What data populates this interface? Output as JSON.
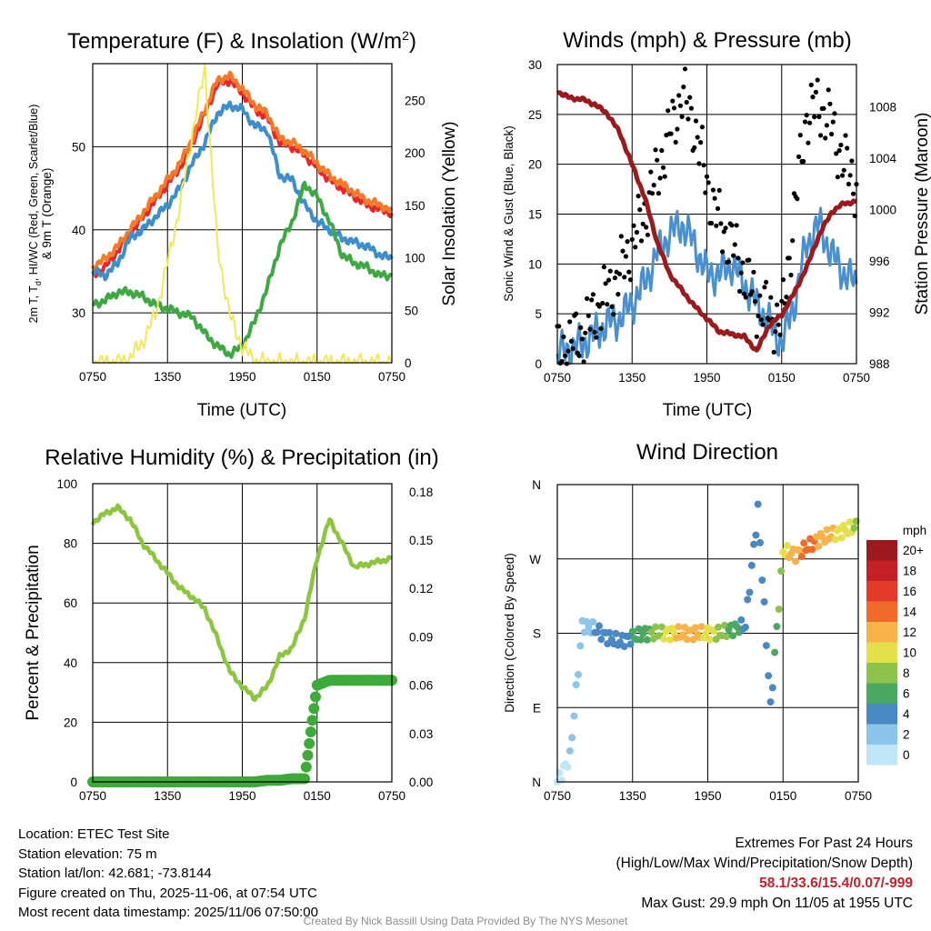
{
  "chart_data": [
    {
      "type": "line",
      "title": "Temperature (F) & Insolation (W/m",
      "title_sup": "2",
      "title_end": ")",
      "xlabel": "Time (UTC)",
      "ylabel_line1": "2m T, T",
      "ylabel_sub": "d",
      "ylabel_line1_end": ", HI/WC (Red, Green, Scarlet/Blue)",
      "ylabel_line2": "& 9m T (Orange)",
      "y2label": "Solar Insolation (Yellow)",
      "xticks": [
        "0750",
        "1350",
        "1950",
        "0150",
        "0750"
      ],
      "x": [
        0,
        1,
        2,
        3,
        4,
        5,
        6,
        7,
        8,
        9,
        10,
        11,
        12,
        13,
        14,
        15,
        16,
        17,
        18,
        19,
        20,
        21,
        22,
        23,
        24
      ],
      "ylim": [
        24,
        60
      ],
      "yticks": [
        30,
        40,
        50
      ],
      "y2lim": [
        0,
        285
      ],
      "y2ticks": [
        0,
        50,
        100,
        150,
        200,
        250
      ],
      "series": [
        {
          "name": "2m T",
          "color": "#e8262a",
          "values": [
            34.5,
            35.5,
            37.5,
            39.5,
            41.5,
            43.5,
            45.5,
            47.5,
            50.5,
            54,
            57.5,
            58,
            56.5,
            54.5,
            53.5,
            50.5,
            50,
            49,
            47.5,
            46,
            45,
            44,
            43,
            42.5,
            42
          ]
        },
        {
          "name": "9m T",
          "color": "#f47a2a",
          "values": [
            35.5,
            36.5,
            38,
            40,
            42,
            44,
            46,
            48,
            51,
            54.5,
            58,
            58.5,
            57,
            55,
            54,
            51,
            50.5,
            49.5,
            48,
            46.5,
            45.5,
            44.5,
            43.5,
            43,
            42.3
          ]
        },
        {
          "name": "HI/WC",
          "color": "#3c8fcc",
          "values": [
            35,
            34.5,
            36,
            39,
            40,
            41.5,
            43,
            45,
            48,
            50.5,
            54,
            55,
            54.5,
            52.5,
            52,
            46.5,
            46,
            43,
            41,
            40,
            39,
            38.5,
            38,
            37,
            36.5
          ]
        },
        {
          "name": "Td",
          "color": "#3ea843",
          "values": [
            31,
            31.5,
            32.5,
            32.5,
            32,
            31,
            30.5,
            30,
            29.5,
            27.5,
            26,
            25,
            26,
            29,
            33,
            38,
            41,
            45.5,
            44,
            41,
            37,
            36,
            35.5,
            34.5,
            34.5
          ]
        },
        {
          "name": "Solar Insolation",
          "color": "#f2e85c",
          "axis": "y2",
          "values": [
            0,
            0,
            0,
            5,
            20,
            45,
            95,
            150,
            220,
            280,
            110,
            45,
            15,
            2,
            0,
            0,
            0,
            0,
            0,
            0,
            0,
            0,
            0,
            0,
            0
          ]
        }
      ]
    },
    {
      "type": "line",
      "title": "Winds (mph) & Pressure (mb)",
      "xlabel": "Time (UTC)",
      "ylabel": "Sonic Wind & Gust (Blue, Black)",
      "y2label": "Station Pressure (Maroon)",
      "xticks": [
        "0750",
        "1350",
        "1950",
        "0150",
        "0750"
      ],
      "x": [
        0,
        1,
        2,
        3,
        4,
        5,
        6,
        7,
        8,
        9,
        10,
        11,
        12,
        13,
        14,
        15,
        16,
        17,
        18,
        19,
        20,
        21,
        22,
        23,
        24
      ],
      "ylim": [
        0,
        30
      ],
      "yticks": [
        0,
        5,
        10,
        15,
        20,
        25,
        30
      ],
      "y2lim": [
        988,
        1011.3
      ],
      "y2ticks": [
        988,
        992,
        996,
        1000,
        1004,
        1008
      ],
      "series": [
        {
          "name": "Sonic Wind",
          "color": "#4a90cf",
          "values": [
            1,
            1.5,
            2,
            3,
            4,
            4.5,
            6,
            8,
            11,
            13,
            14,
            12,
            9,
            9,
            10,
            8,
            6,
            4,
            2,
            6,
            12,
            14,
            11,
            9,
            8
          ]
        },
        {
          "name": "Gust",
          "color": "#000000",
          "style": "points",
          "values": [
            1,
            2,
            3,
            5,
            7,
            9,
            12,
            15,
            19,
            23,
            27,
            24,
            18,
            14,
            12,
            9,
            6,
            5,
            4,
            15,
            25,
            26,
            24,
            20,
            18
          ]
        },
        {
          "name": "Station Pressure",
          "color": "#9b1a1e",
          "axis": "y2",
          "values": [
            1009.2,
            1008.7,
            1008.6,
            1008.2,
            1007.5,
            1006,
            1003.5,
            1001,
            997.5,
            995,
            993.7,
            992.5,
            991.5,
            990.5,
            990.3,
            990.1,
            989,
            991,
            991.8,
            993.5,
            995.5,
            998,
            999.8,
            1000.5,
            1000.6
          ]
        }
      ]
    },
    {
      "type": "line",
      "title": "Relative Humidity (%) & Precipitation (in)",
      "xlabel": "",
      "ylabel": "Percent & Precipitation",
      "xticks": [
        "0750",
        "1350",
        "1950",
        "0150",
        "0750"
      ],
      "x": [
        0,
        1,
        2,
        3,
        4,
        5,
        6,
        7,
        8,
        9,
        10,
        11,
        12,
        13,
        14,
        15,
        16,
        17,
        18,
        19,
        20,
        21,
        22,
        23,
        24
      ],
      "ylim": [
        0,
        100
      ],
      "yticks": [
        0,
        20,
        40,
        60,
        80,
        100
      ],
      "y2lim": [
        0,
        0.185
      ],
      "y2ticks": [
        "0.00",
        "0.03",
        "0.06",
        "0.09",
        "0.12",
        "0.15",
        "0.18"
      ],
      "series": [
        {
          "name": "Relative Humidity",
          "color": "#8cc63f",
          "values": [
            87,
            90,
            92,
            88,
            80,
            75,
            70,
            65,
            62,
            58,
            48,
            37,
            32,
            28,
            32,
            42,
            45,
            55,
            75,
            88,
            80,
            72,
            73,
            74,
            75
          ]
        },
        {
          "name": "Precipitation",
          "color": "#3daa3a",
          "axis": "y2",
          "values": [
            0,
            0,
            0,
            0,
            0,
            0,
            0,
            0,
            0,
            0,
            0,
            0,
            0,
            0,
            0.001,
            0.001,
            0.002,
            0.002,
            0.06,
            0.063,
            0.063,
            0.063,
            0.063,
            0.063,
            0.063
          ]
        }
      ]
    },
    {
      "type": "scatter",
      "title": "Wind Direction",
      "ylabel": "Direction (Colored By Speed)",
      "xticks": [
        "0750",
        "1350",
        "1950",
        "0150",
        "0750"
      ],
      "ylim": [
        0,
        360
      ],
      "yticks": [
        "N",
        "E",
        "S",
        "W",
        "N"
      ],
      "legend_title": "mph",
      "legend": [
        {
          "label": "0",
          "color": "#bfe6f7"
        },
        {
          "label": "2",
          "color": "#8cc4ea"
        },
        {
          "label": "4",
          "color": "#4a88c4"
        },
        {
          "label": "6",
          "color": "#4aa860"
        },
        {
          "label": "8",
          "color": "#8cc34a"
        },
        {
          "label": "10",
          "color": "#e4e04a"
        },
        {
          "label": "12",
          "color": "#f7b24a"
        },
        {
          "label": "14",
          "color": "#f06a2a"
        },
        {
          "label": "16",
          "color": "#e33b2a"
        },
        {
          "label": "18",
          "color": "#c42027"
        },
        {
          "label": "20+",
          "color": "#9a1a1e"
        }
      ],
      "x": [
        0,
        1,
        2,
        3,
        4,
        5,
        6,
        7,
        8,
        9,
        10,
        11,
        12,
        13,
        14,
        15,
        16,
        17,
        18,
        19,
        20,
        21,
        22,
        23,
        24
      ],
      "direction": [
        0,
        30,
        190,
        185,
        175,
        170,
        175,
        180,
        180,
        180,
        180,
        180,
        180,
        180,
        185,
        190,
        330,
        90,
        280,
        275,
        285,
        295,
        300,
        305,
        310
      ],
      "speed": [
        0,
        1,
        2,
        3,
        4,
        4,
        5,
        6,
        8,
        10,
        12,
        12,
        10,
        8,
        6,
        4,
        3,
        3,
        10,
        12,
        14,
        12,
        11,
        10,
        8
      ]
    }
  ],
  "footer": {
    "location": "Location: ETEC Test Site",
    "elevation": "Station elevation: 75 m",
    "latlon": "Station lat/lon: 42.681; -73.8144",
    "created": "Figure created on Thu, 2025-11-06, at 07:54 UTC",
    "recent": "Most recent data timestamp: 2025/11/06 07:50:00"
  },
  "extremes": {
    "title": "Extremes For Past 24 Hours",
    "subtitle": "(High/Low/Max Wind/Precipitation/Snow Depth)",
    "values": "58.1/33.6/15.4/0.07/-999",
    "gust": "Max Gust: 29.9 mph On 11/05 at 1955 UTC"
  },
  "credit": "Created By Nick Bassill Using Data Provided By The NYS Mesonet"
}
